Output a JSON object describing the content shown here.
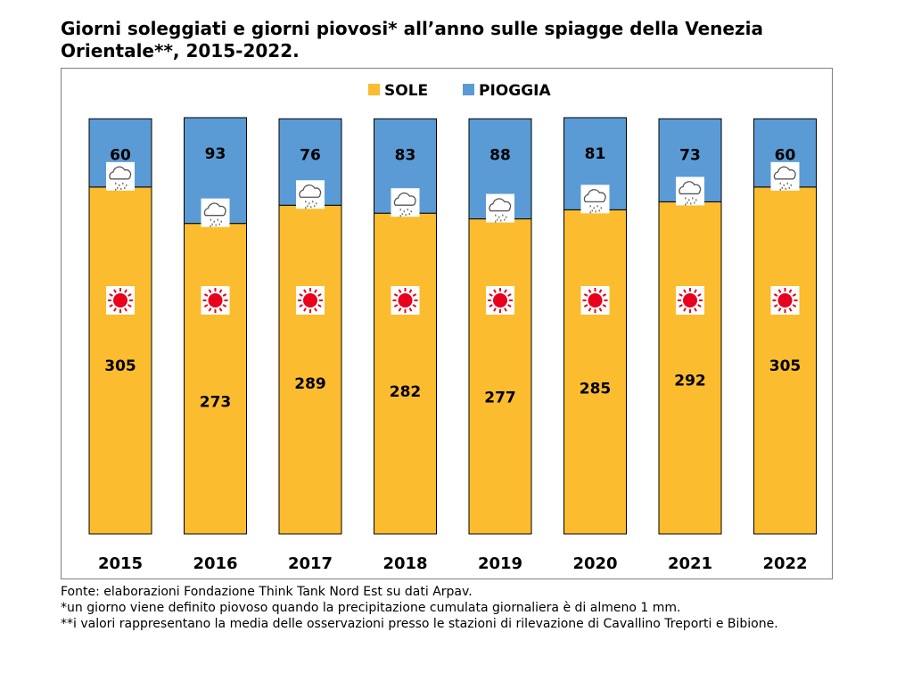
{
  "title": "Giorni soleggiati e giorni piovosi* all’anno sulle spiagge della Venezia Orientale**, 2015-2022.",
  "chart_data": {
    "type": "bar",
    "stacked": true,
    "categories": [
      "2015",
      "2016",
      "2017",
      "2018",
      "2019",
      "2020",
      "2021",
      "2022"
    ],
    "series": [
      {
        "name": "SOLE",
        "color": "#FBBC2F",
        "icon": "sun-icon",
        "values": [
          305,
          273,
          289,
          282,
          277,
          285,
          292,
          305
        ]
      },
      {
        "name": "PIOGGIA",
        "color": "#5B9BD5",
        "icon": "rain-cloud-icon",
        "values": [
          60,
          93,
          76,
          83,
          88,
          81,
          73,
          60
        ]
      }
    ],
    "ylim": [
      0,
      366
    ],
    "grid": false,
    "legend_position": "top-center"
  },
  "notes": [
    "Fonte: elaborazioni Fondazione Think Tank Nord Est su dati Arpav.",
    "*un giorno viene definito piovoso quando la precipitazione cumulata giornaliera è di almeno 1 mm.",
    "**i valori rappresentano la media delle osservazioni presso le stazioni di rilevazione di Cavallino Treporti e Bibione."
  ]
}
